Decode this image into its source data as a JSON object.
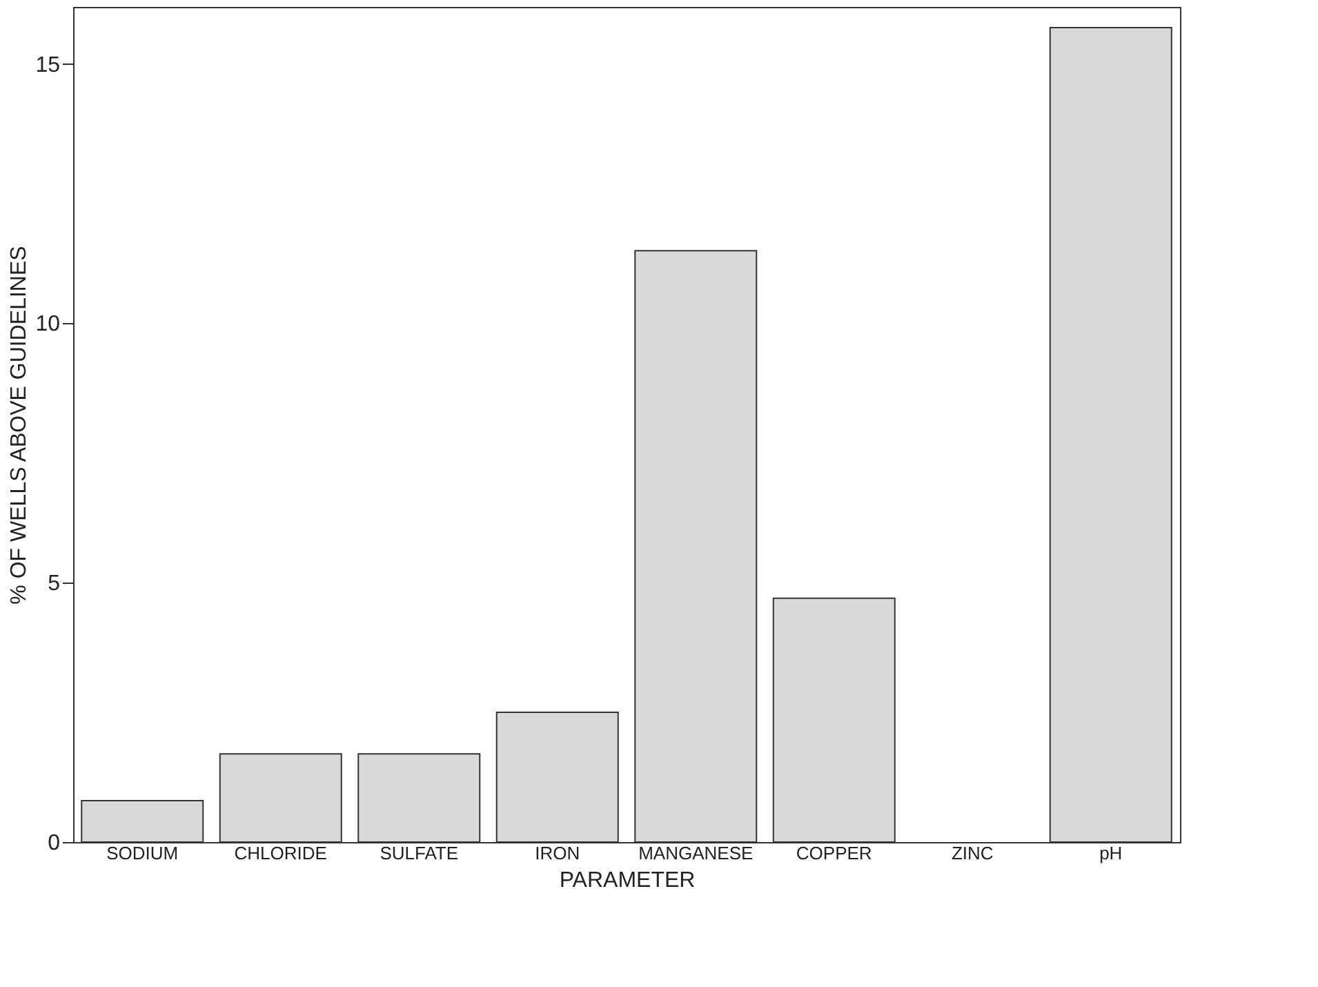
{
  "chart_data": {
    "type": "bar",
    "xlabel": "PARAMETER",
    "ylabel": "% OF WELLS ABOVE GUIDELINES",
    "categories": [
      "SODIUM",
      "CHLORIDE",
      "SULFATE",
      "IRON",
      "MANGANESE",
      "COPPER",
      "ZINC",
      "pH"
    ],
    "values": [
      0.8,
      1.7,
      1.7,
      2.5,
      11.4,
      4.7,
      0,
      15.7
    ],
    "color": "#d9d9d9",
    "ylim": [
      0,
      16.1
    ],
    "yticks": [
      0,
      5,
      10,
      15
    ],
    "grid": false
  }
}
